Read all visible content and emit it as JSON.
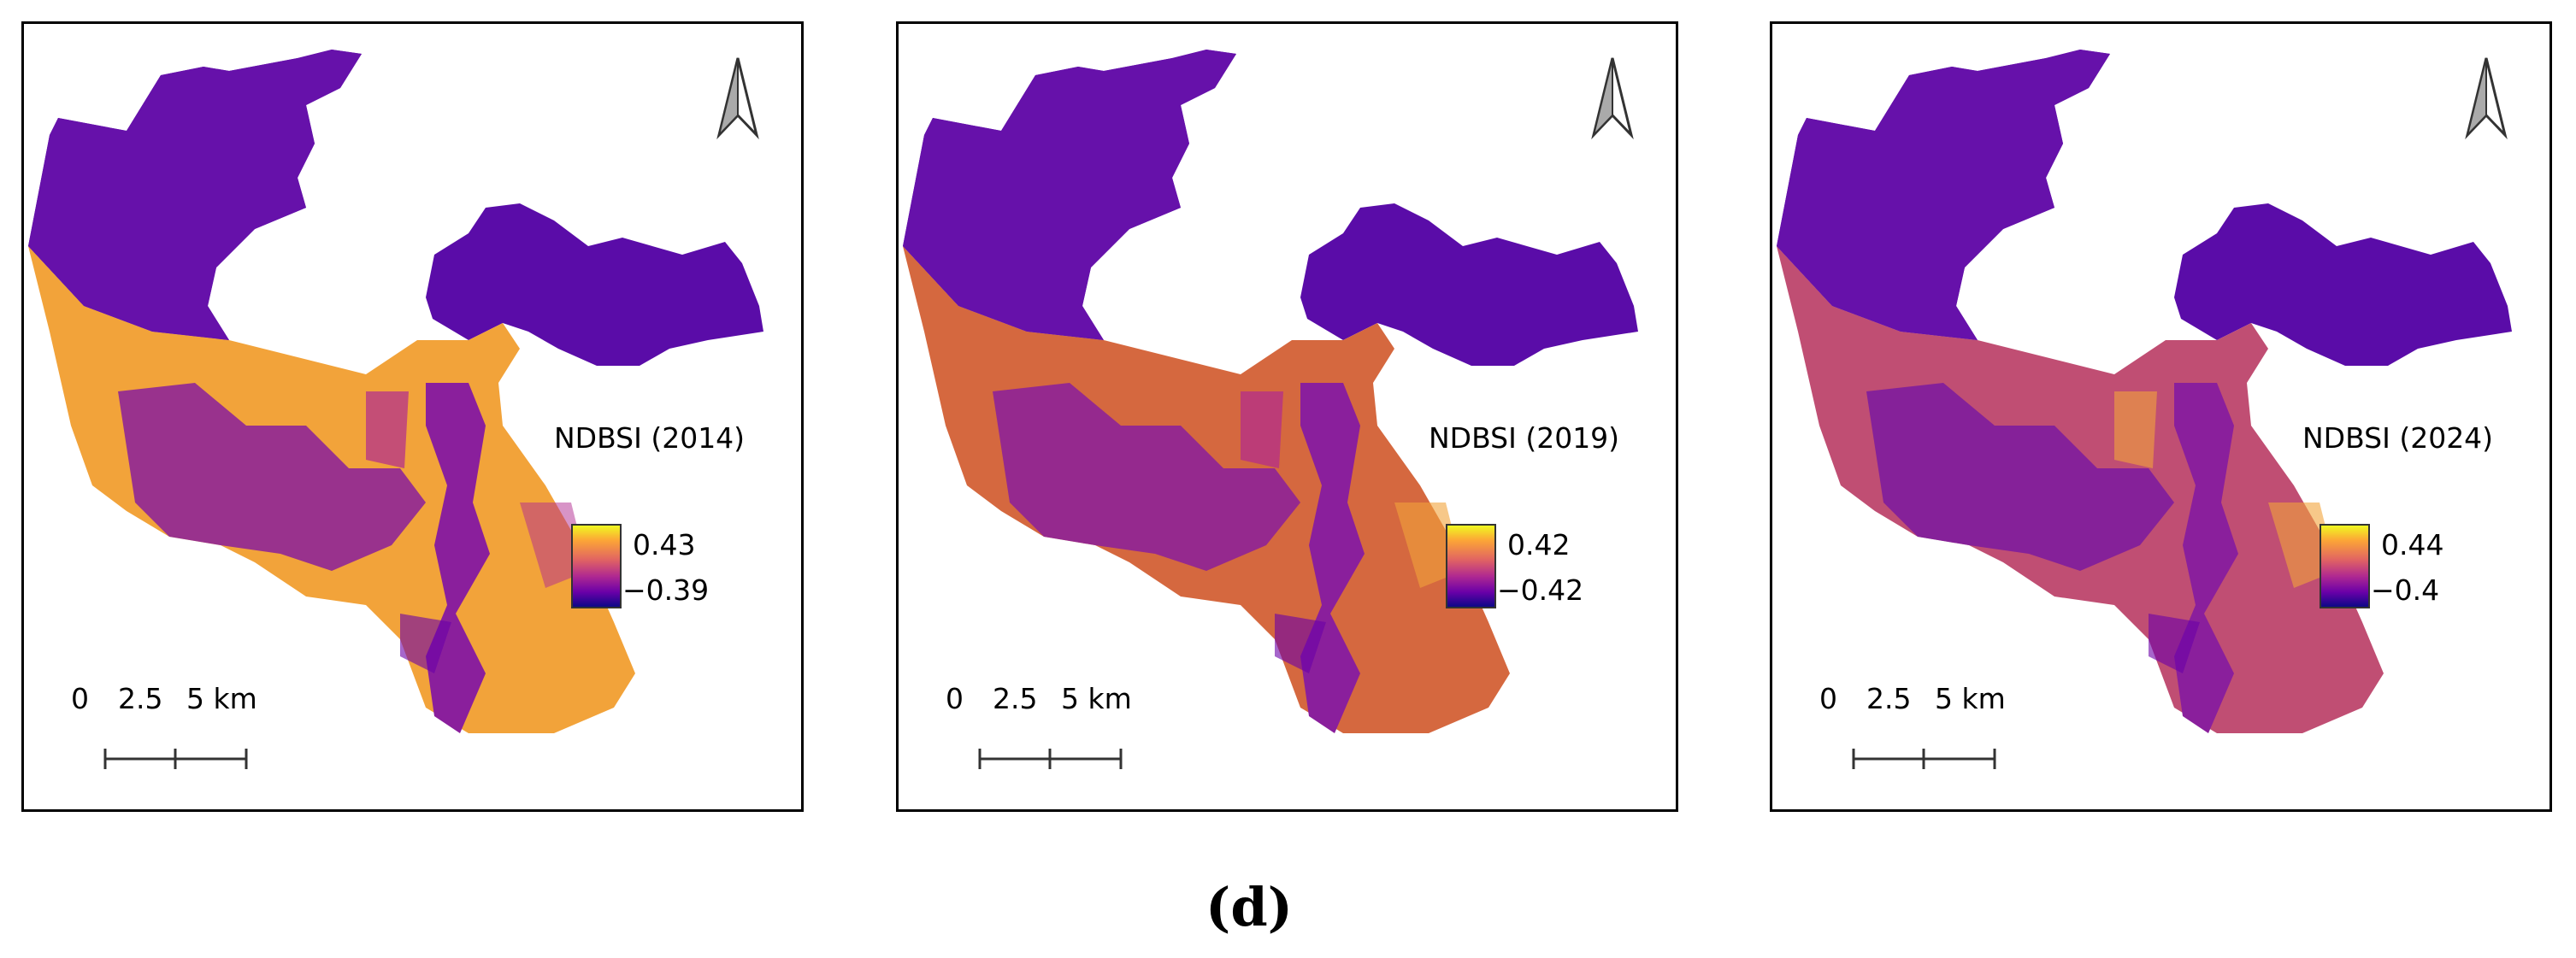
{
  "panels": [
    {
      "legend_title": "NDBSI (2014)",
      "max_label": "0.43",
      "min_label": "−0.39"
    },
    {
      "legend_title": "NDBSI (2019)",
      "max_label": "0.42",
      "min_label": "−0.42"
    },
    {
      "legend_title": "NDBSI (2024)",
      "max_label": "0.44",
      "min_label": "−0.4"
    }
  ],
  "scale": {
    "t0": "0",
    "t1": "2.5",
    "t2": "5 km"
  },
  "colormap": [
    "#0d0887",
    "#6a00a8",
    "#b12a90",
    "#e16462",
    "#fca636",
    "#f0f921"
  ],
  "figure_label": "(d)",
  "icons": {
    "north_arrow": "north-arrow-icon"
  }
}
